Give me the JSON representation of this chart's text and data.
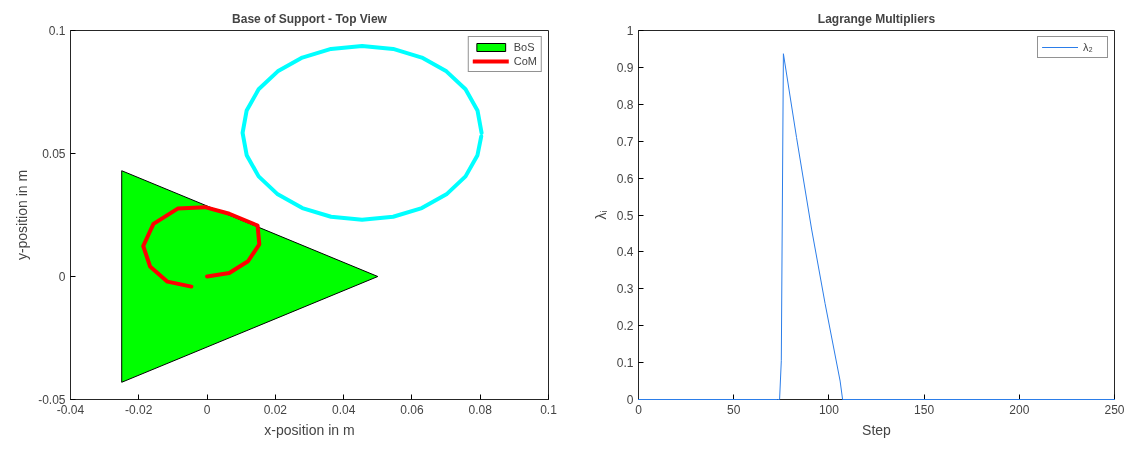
{
  "chart_data": [
    {
      "type": "line",
      "title": "Base of Support - Top View",
      "xlabel": "x-position in m",
      "ylabel": "y-position in m",
      "xlim": [
        -0.04,
        0.1
      ],
      "ylim": [
        -0.05,
        0.1
      ],
      "xticks": [
        -0.04,
        -0.02,
        0,
        0.02,
        0.04,
        0.06,
        0.08,
        0.1
      ],
      "yticks": [
        -0.05,
        0,
        0.05,
        0.1
      ],
      "grid": false,
      "legend": "top right",
      "series": [
        {
          "name": "BoS",
          "type": "area",
          "color": "#00ff00",
          "x": [
            -0.025,
            0.05,
            -0.025
          ],
          "values": [
            0.043,
            0,
            -0.043
          ]
        },
        {
          "type": "line",
          "color": "#00ffff",
          "x": [
            0.0804,
            0.0792,
            0.0757,
            0.0701,
            0.0629,
            0.0545,
            0.0454,
            0.0363,
            0.0279,
            0.0207,
            0.0151,
            0.0116,
            0.0104,
            0.0116,
            0.0151,
            0.0207,
            0.0279,
            0.0363,
            0.0454,
            0.0545,
            0.0629,
            0.0701,
            0.0757,
            0.0792,
            0.0803
          ],
          "values": [
            0.0584,
            0.0675,
            0.0761,
            0.0834,
            0.089,
            0.0925,
            0.0937,
            0.0925,
            0.089,
            0.0834,
            0.0761,
            0.0675,
            0.0584,
            0.0493,
            0.0407,
            0.0334,
            0.0278,
            0.0243,
            0.0231,
            0.0243,
            0.0278,
            0.0334,
            0.0407,
            0.0493,
            0.057
          ]
        },
        {
          "name": "CoM",
          "type": "line",
          "color": "#ff0000",
          "x": [
            0.0,
            0.0065,
            0.012,
            0.0153,
            0.0148,
            0.0065,
            -0.0006,
            -0.0086,
            -0.0157,
            -0.0187,
            -0.0167,
            -0.0116,
            -0.0046
          ],
          "values": [
            0.0,
            0.0014,
            0.0062,
            0.0131,
            0.0207,
            0.0255,
            0.0282,
            0.0276,
            0.0214,
            0.0124,
            0.0041,
            -0.0021,
            -0.0041
          ]
        }
      ]
    },
    {
      "type": "line",
      "title": "Lagrange Multipliers",
      "xlabel": "Step",
      "ylabel": "λᵢ",
      "xlim": [
        0,
        250
      ],
      "ylim": [
        0,
        1
      ],
      "xticks": [
        0,
        50,
        100,
        150,
        200,
        250
      ],
      "yticks": [
        0,
        0.1,
        0.2,
        0.3,
        0.4,
        0.5,
        0.6,
        0.7,
        0.8,
        0.9,
        1
      ],
      "grid": false,
      "legend": "top right",
      "series": [
        {
          "name": "λ₂",
          "color": "#2b7de9",
          "x": [
            0,
            73,
            74.1,
            75,
            76.1,
            83,
            90.9,
            98,
            105.9,
            107.2,
            250
          ],
          "values": [
            0,
            0,
            0,
            0.105,
            0.937,
            0.71,
            0.462,
            0.26,
            0.05,
            0,
            0
          ]
        }
      ]
    }
  ]
}
